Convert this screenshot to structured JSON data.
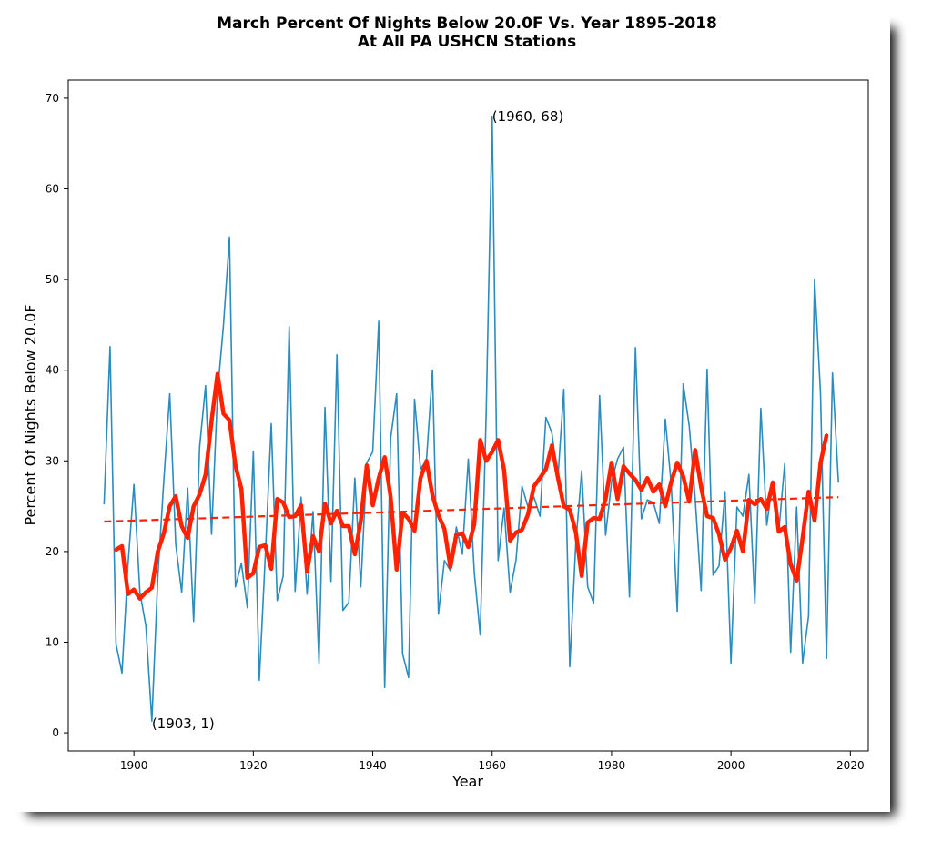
{
  "chart_data": {
    "type": "line",
    "title_line1": "March Percent Of Nights Below 20.0F Vs. Year 1895-2018",
    "title_line2": "At All PA USHCN Stations",
    "xlabel": "Year",
    "ylabel": "Percent Of Nights Below 20.0F",
    "xlim": [
      1889,
      2023
    ],
    "ylim": [
      -2,
      72
    ],
    "xticks": [
      1900,
      1920,
      1940,
      1960,
      1980,
      2000,
      2020
    ],
    "yticks": [
      0,
      10,
      20,
      30,
      40,
      50,
      60,
      70
    ],
    "grid": false,
    "colors": {
      "raw": "#2b8cbe",
      "smooth": "#ff2200",
      "trend": "#ff2200"
    },
    "annotations": [
      {
        "text": "(1960, 68)",
        "x": 1960,
        "y": 68
      },
      {
        "text": "(1903, 1)",
        "x": 1903,
        "y": 1
      }
    ],
    "series": [
      {
        "style": "raw",
        "x": [
          1895,
          1896,
          1897,
          1898,
          1899,
          1900,
          1901,
          1902,
          1903,
          1904,
          1905,
          1906,
          1907,
          1908,
          1909,
          1910,
          1911,
          1912,
          1913,
          1914,
          1915,
          1916,
          1917,
          1918,
          1919,
          1920,
          1921,
          1922,
          1923,
          1924,
          1925,
          1926,
          1927,
          1928,
          1929,
          1930,
          1931,
          1932,
          1933,
          1934,
          1935,
          1936,
          1937,
          1938,
          1939,
          1940,
          1941,
          1942,
          1943,
          1944,
          1945,
          1946,
          1947,
          1948,
          1949,
          1950,
          1951,
          1952,
          1953,
          1954,
          1955,
          1956,
          1957,
          1958,
          1959,
          1960,
          1961,
          1962,
          1963,
          1964,
          1965,
          1966,
          1967,
          1968,
          1969,
          1970,
          1971,
          1972,
          1973,
          1974,
          1975,
          1976,
          1977,
          1978,
          1979,
          1980,
          1981,
          1982,
          1983,
          1984,
          1985,
          1986,
          1987,
          1988,
          1989,
          1990,
          1991,
          1992,
          1993,
          1994,
          1995,
          1996,
          1997,
          1998,
          1999,
          2000,
          2001,
          2002,
          2003,
          2004,
          2005,
          2006,
          2007,
          2008,
          2009,
          2010,
          2011,
          2012,
          2013,
          2014,
          2015,
          2016,
          2017,
          2018
        ],
        "values": [
          25.2,
          42.6,
          9.8,
          6.6,
          18.5,
          27.4,
          15.5,
          11.8,
          1.3,
          17.2,
          27.8,
          37.4,
          20.8,
          15.5,
          27.0,
          12.3,
          31.5,
          38.3,
          21.9,
          37.5,
          45.0,
          54.7,
          16.1,
          18.7,
          13.8,
          31.0,
          5.8,
          19.5,
          34.1,
          14.6,
          17.3,
          44.8,
          15.6,
          26.0,
          15.3,
          24.4,
          7.7,
          35.9,
          16.7,
          41.7,
          13.5,
          14.4,
          28.1,
          16.1,
          29.8,
          31.0,
          45.4,
          5.0,
          32.5,
          37.4,
          8.7,
          6.1,
          36.8,
          29.1,
          30.1,
          40.0,
          13.1,
          19.0,
          17.9,
          22.7,
          19.7,
          30.2,
          17.7,
          10.8,
          35.3,
          68.0,
          19.0,
          24.8,
          15.5,
          19.1,
          27.2,
          24.9,
          26.0,
          23.9,
          34.8,
          33.1,
          28.0,
          37.9,
          7.3,
          20.8,
          28.9,
          16.1,
          14.3,
          37.2,
          21.8,
          27.7,
          30.2,
          31.5,
          15.0,
          42.5,
          23.6,
          25.7,
          25.4,
          23.1,
          34.6,
          27.3,
          13.4,
          38.5,
          33.9,
          25.9,
          15.7,
          40.1,
          17.4,
          18.4,
          26.6,
          7.7,
          24.9,
          23.9,
          28.5,
          14.3,
          35.8,
          22.9,
          27.8,
          22.1,
          29.7,
          8.9,
          24.9,
          7.7,
          12.9,
          50.0,
          37.4,
          8.2,
          39.7,
          27.6
        ]
      },
      {
        "style": "smooth",
        "x": [
          1897,
          1898,
          1899,
          1900,
          1901,
          1902,
          1903,
          1904,
          1905,
          1906,
          1907,
          1908,
          1909,
          1910,
          1911,
          1912,
          1913,
          1914,
          1915,
          1916,
          1917,
          1918,
          1919,
          1920,
          1921,
          1922,
          1923,
          1924,
          1925,
          1926,
          1927,
          1928,
          1929,
          1930,
          1931,
          1932,
          1933,
          1934,
          1935,
          1936,
          1937,
          1938,
          1939,
          1940,
          1941,
          1942,
          1943,
          1944,
          1945,
          1946,
          1947,
          1948,
          1949,
          1950,
          1951,
          1952,
          1953,
          1954,
          1955,
          1956,
          1957,
          1958,
          1959,
          1960,
          1961,
          1962,
          1963,
          1964,
          1965,
          1966,
          1967,
          1968,
          1969,
          1970,
          1971,
          1972,
          1973,
          1974,
          1975,
          1976,
          1977,
          1978,
          1979,
          1980,
          1981,
          1982,
          1983,
          1984,
          1985,
          1986,
          1987,
          1988,
          1989,
          1990,
          1991,
          1992,
          1993,
          1994,
          1995,
          1996,
          1997,
          1998,
          1999,
          2000,
          2001,
          2002,
          2003,
          2004,
          2005,
          2006,
          2007,
          2008,
          2009,
          2010,
          2011,
          2012,
          2013,
          2014,
          2015,
          2016
        ],
        "values": [
          20.2,
          20.6,
          15.3,
          15.8,
          14.8,
          15.5,
          16.0,
          20.0,
          22.0,
          25.0,
          26.1,
          22.8,
          21.5,
          25.0,
          26.3,
          28.5,
          34.4,
          39.6,
          35.2,
          34.5,
          29.5,
          26.9,
          17.1,
          17.6,
          20.5,
          20.7,
          18.1,
          25.8,
          25.4,
          23.8,
          23.9,
          25.1,
          17.8,
          21.7,
          20.0,
          25.3,
          23.1,
          24.5,
          22.8,
          22.8,
          19.7,
          23.4,
          29.5,
          25.1,
          28.1,
          30.4,
          26.0,
          18.0,
          24.3,
          23.6,
          22.3,
          28.1,
          30.0,
          26.2,
          24.0,
          22.5,
          18.3,
          21.9,
          22.0,
          20.5,
          23.0,
          32.3,
          30.0,
          31.0,
          32.3,
          29.0,
          21.2,
          22.1,
          22.4,
          24.1,
          27.2,
          28.1,
          29.1,
          31.7,
          28.2,
          25.0,
          24.6,
          22.2,
          17.3,
          23.2,
          23.7,
          23.6,
          25.8,
          29.8,
          25.8,
          29.4,
          28.6,
          27.9,
          26.8,
          28.1,
          26.6,
          27.4,
          25.0,
          27.7,
          29.8,
          28.3,
          25.5,
          31.2,
          27.1,
          23.9,
          23.7,
          21.9,
          19.1,
          20.4,
          22.3,
          20.0,
          25.7,
          25.2,
          25.8,
          24.7,
          27.6,
          22.2,
          22.7,
          18.6,
          16.8,
          21.5,
          26.6,
          23.4,
          29.8,
          32.8
        ]
      },
      {
        "style": "trend",
        "x": [
          1895,
          2018
        ],
        "values": [
          23.3,
          26.0
        ]
      }
    ]
  }
}
